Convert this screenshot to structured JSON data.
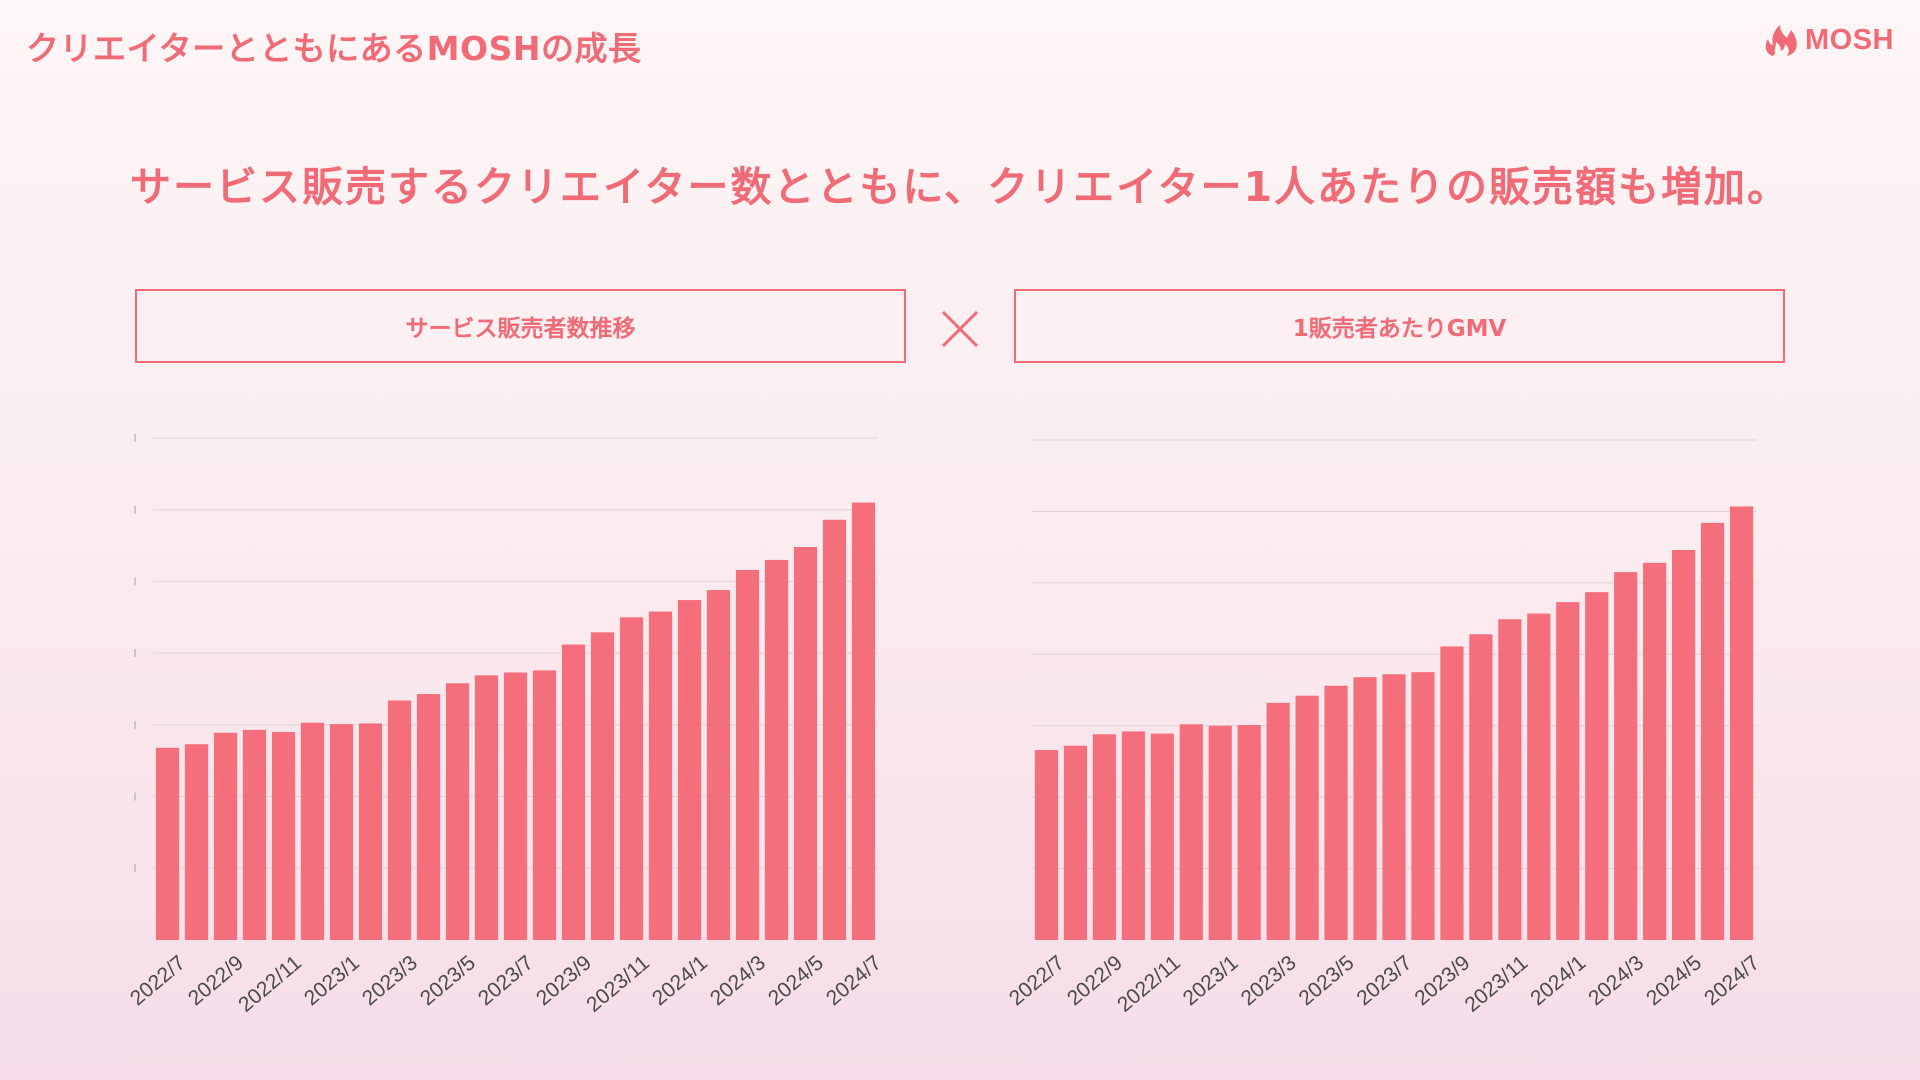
{
  "header": {
    "title": "クリエイターとともにあるMOSHの成長",
    "brand": "MOSH"
  },
  "headline": "サービス販売するクリエイター数とともに、クリエイター1人あたりの販売額も増加。",
  "colors": {
    "accent": "#f06b76",
    "bar": "#f46f7b",
    "grid": "#dcd5d7",
    "tick_text": "#4a4a4a"
  },
  "charts": {
    "left_title": "サービス販売者数推移",
    "right_title": "1販売者あたりGMV",
    "operator_icon": "times-icon"
  },
  "chart_data": [
    {
      "type": "bar",
      "title": "サービス販売者数推移",
      "categories": [
        "2022/7",
        "2022/8",
        "2022/9",
        "2022/10",
        "2022/11",
        "2022/12",
        "2023/1",
        "2023/2",
        "2023/3",
        "2023/4",
        "2023/5",
        "2023/6",
        "2023/7",
        "2023/8",
        "2023/9",
        "2023/10",
        "2023/11",
        "2023/12",
        "2024/1",
        "2024/2",
        "2024/3",
        "2024/4",
        "2024/5",
        "2024/6",
        "2024/7"
      ],
      "tick_labels": [
        "2022/7",
        "2022/9",
        "2022/11",
        "2023/1",
        "2023/3",
        "2023/5",
        "2023/7",
        "2023/9",
        "2023/11",
        "2024/1",
        "2024/3",
        "2024/5",
        "2024/7"
      ],
      "values": [
        2.68,
        2.73,
        2.89,
        2.93,
        2.9,
        3.03,
        3.01,
        3.02,
        3.34,
        3.43,
        3.58,
        3.69,
        3.73,
        3.76,
        4.12,
        4.29,
        4.5,
        4.58,
        4.74,
        4.88,
        5.16,
        5.3,
        5.48,
        5.86,
        6.1
      ],
      "ylim": [
        0,
        7
      ],
      "grid": true,
      "xlabel": "",
      "ylabel": ""
    },
    {
      "type": "bar",
      "title": "1販売者あたりGMV",
      "categories": [
        "2022/7",
        "2022/8",
        "2022/9",
        "2022/10",
        "2022/11",
        "2022/12",
        "2023/1",
        "2023/2",
        "2023/3",
        "2023/4",
        "2023/5",
        "2023/6",
        "2023/7",
        "2023/8",
        "2023/9",
        "2023/10",
        "2023/11",
        "2023/12",
        "2024/1",
        "2024/2",
        "2024/3",
        "2024/4",
        "2024/5",
        "2024/6",
        "2024/7"
      ],
      "tick_labels": [
        "2022/7",
        "2022/9",
        "2022/11",
        "2023/1",
        "2023/3",
        "2023/5",
        "2023/7",
        "2023/9",
        "2023/11",
        "2024/1",
        "2024/3",
        "2024/5",
        "2024/7"
      ],
      "values": [
        2.66,
        2.72,
        2.88,
        2.92,
        2.89,
        3.02,
        3.0,
        3.01,
        3.32,
        3.42,
        3.56,
        3.68,
        3.72,
        3.75,
        4.11,
        4.28,
        4.49,
        4.57,
        4.73,
        4.87,
        5.15,
        5.28,
        5.46,
        5.84,
        6.07
      ],
      "ylim": [
        0,
        7
      ],
      "grid": true,
      "xlabel": "",
      "ylabel": ""
    }
  ]
}
